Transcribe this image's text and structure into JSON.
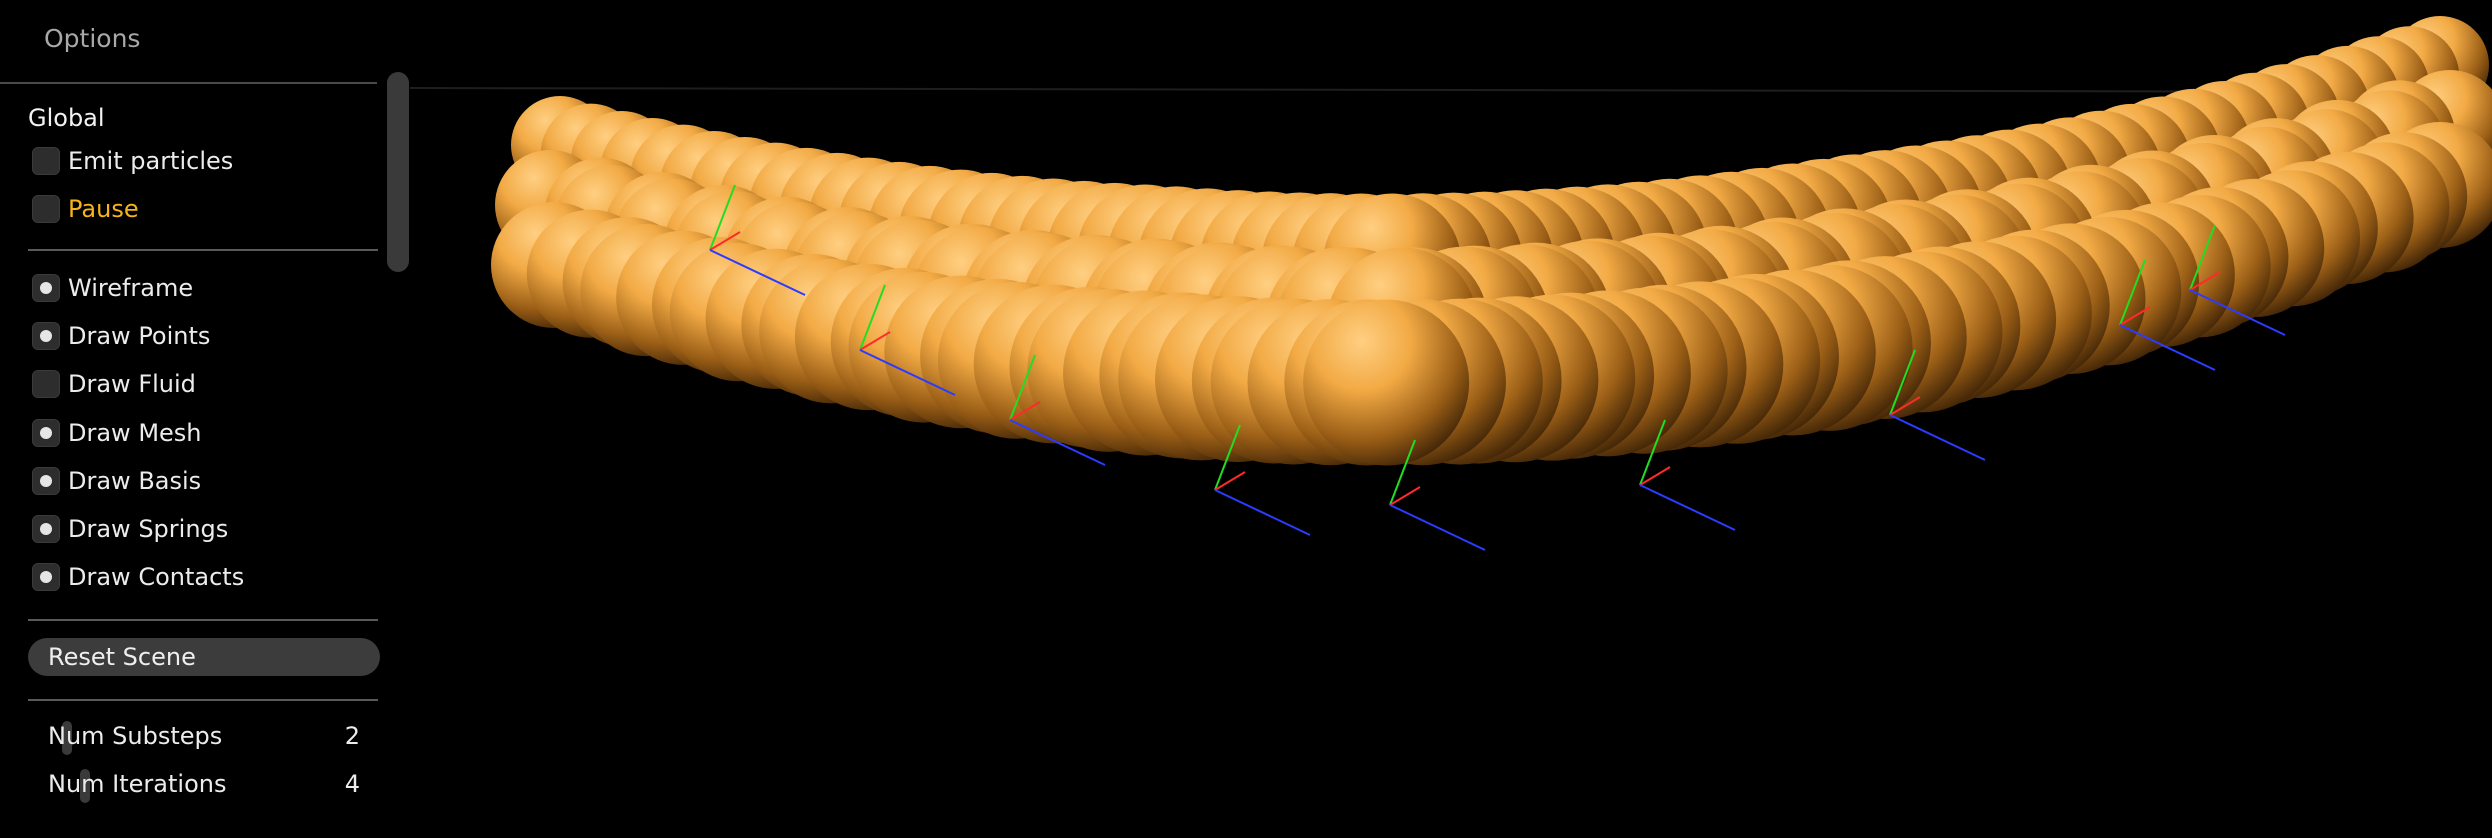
{
  "panel": {
    "title": "Options",
    "section_heading": "Global",
    "checkboxes": [
      {
        "label": "Emit particles",
        "checked": false,
        "highlight": false
      },
      {
        "label": "Pause",
        "checked": false,
        "highlight": true
      },
      {
        "label": "Wireframe",
        "checked": true,
        "highlight": false
      },
      {
        "label": "Draw Points",
        "checked": true,
        "highlight": false
      },
      {
        "label": "Draw Fluid",
        "checked": false,
        "highlight": false
      },
      {
        "label": "Draw Mesh",
        "checked": true,
        "highlight": false
      },
      {
        "label": "Draw Basis",
        "checked": true,
        "highlight": false
      },
      {
        "label": "Draw Springs",
        "checked": true,
        "highlight": false
      },
      {
        "label": "Draw Contacts",
        "checked": true,
        "highlight": false
      }
    ],
    "reset_button": "Reset Scene",
    "sliders": [
      {
        "label": "Num Substeps",
        "value": "2"
      },
      {
        "label": "Num Iterations",
        "value": "4"
      }
    ]
  },
  "colors": {
    "accent": "#f5b41c",
    "particle_light": "#ffc877",
    "particle_dark": "#2a1603",
    "basis_x": "#ff2a2a",
    "basis_y": "#22dd22",
    "basis_z": "#2b3cff"
  }
}
